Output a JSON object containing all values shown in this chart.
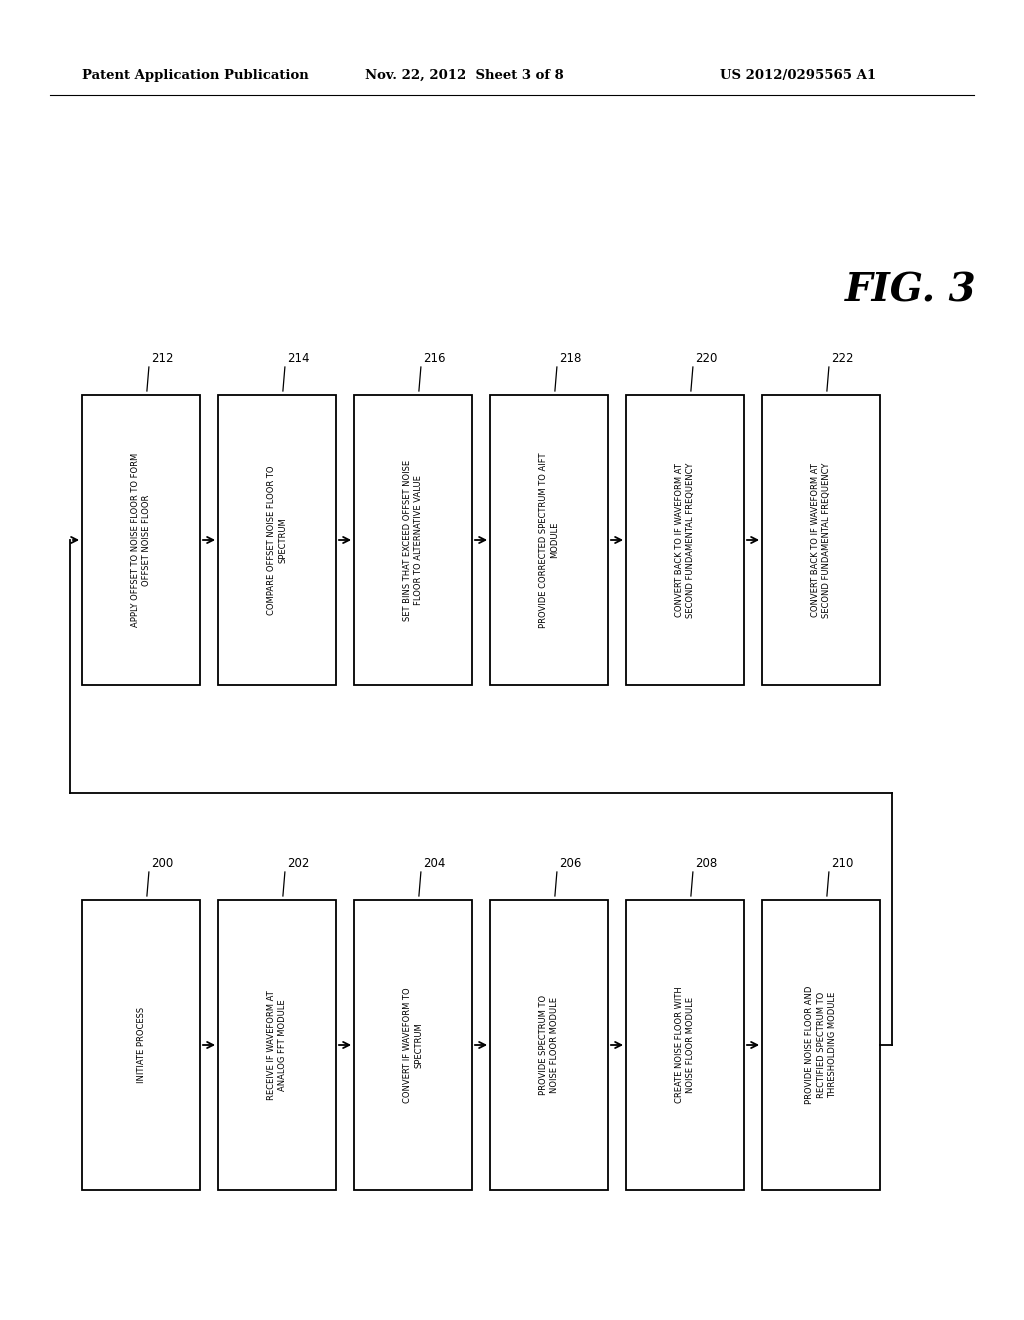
{
  "header_left": "Patent Application Publication",
  "header_mid": "Nov. 22, 2012  Sheet 3 of 8",
  "header_right": "US 2012/0295565 A1",
  "fig_label": "FIG. 3",
  "top_row_boxes": [
    {
      "id": "212",
      "label": "APPLY OFFSET TO NOISE FLOOR TO FORM\nOFFSET NOISE FLOOR"
    },
    {
      "id": "214",
      "label": "COMPARE OFFSET NOISE FLOOR TO\nSPECTRUM"
    },
    {
      "id": "216",
      "label": "SET BINS THAT EXCEED OFFSET NOISE\nFLOOR TO ALTERNATIVE VALUE"
    },
    {
      "id": "218",
      "label": "PROVIDE CORRECTED SPECTRUM TO AIFT\nMODULE"
    },
    {
      "id": "220",
      "label": "CONVERT BACK TO IF WAVEFORM AT\nSECOND FUNDAMENTAL FREQUENCY"
    },
    {
      "id": "222",
      "label": "CONVERT BACK TO IF WAVEFORM AT\nSECOND FUNDAMENTAL FREQUENCY"
    }
  ],
  "bottom_row_boxes": [
    {
      "id": "200",
      "label": "INITIATE PROCESS"
    },
    {
      "id": "202",
      "label": "RECEIVE IF WAVEFORM AT\nANALOG FFT MODULE"
    },
    {
      "id": "204",
      "label": "CONVERT IF WAVEFORM TO\nSPECTRUM"
    },
    {
      "id": "206",
      "label": "PROVIDE SPECTRUM TO\nNOISE FLOOR MODULE"
    },
    {
      "id": "208",
      "label": "CREATE NOISE FLOOR WITH\nNOISE FLOOR MODULE"
    },
    {
      "id": "210",
      "label": "PROVIDE NOISE FLOOR AND\nRECTIFIED SPECTRUM TO\nTHRESHOLDING MODULE"
    }
  ],
  "bg_color": "#ffffff",
  "box_edge_color": "#000000",
  "text_color": "#000000"
}
